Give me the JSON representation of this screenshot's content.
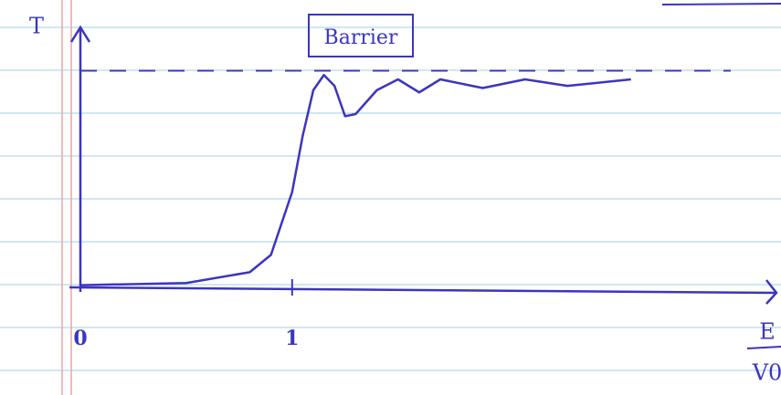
{
  "chart_data": {
    "type": "line",
    "annotation": "Barrier",
    "ylabel": "T",
    "xlabel_numerator": "E",
    "xlabel_denominator": "V0",
    "xlim": [
      0,
      3.3
    ],
    "ylim": [
      0,
      1.2
    ],
    "xticks": [
      0,
      1
    ],
    "reference_line": 1,
    "color": "#3b35c0",
    "x": [
      0,
      0.5,
      0.8,
      0.9,
      1.0,
      1.05,
      1.1,
      1.15,
      1.2,
      1.25,
      1.3,
      1.4,
      1.5,
      1.6,
      1.7,
      1.9,
      2.1,
      2.3,
      2.6
    ],
    "values": [
      0.01,
      0.02,
      0.07,
      0.15,
      0.44,
      0.7,
      0.91,
      0.98,
      0.93,
      0.79,
      0.8,
      0.91,
      0.96,
      0.9,
      0.96,
      0.92,
      0.96,
      0.93,
      0.96
    ]
  }
}
